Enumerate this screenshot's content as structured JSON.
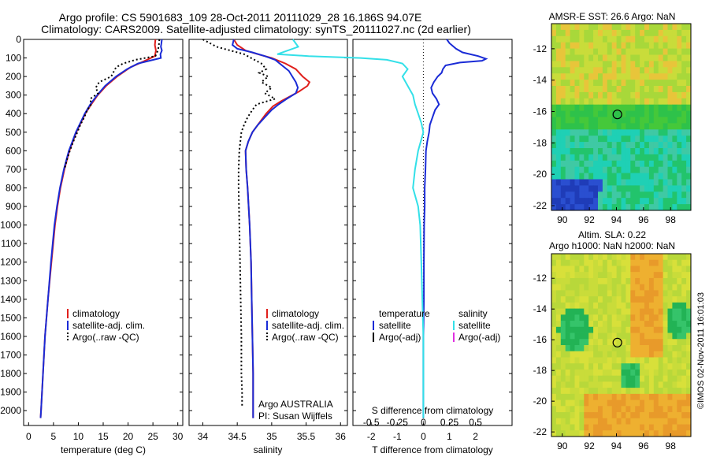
{
  "header": {
    "line1": "Argo profile: CS 5901683_109 28-Oct-2011 20111029_28 16.186S 94.07E",
    "line2": "Climatology: CARS2009. Satellite-adjusted climatology: synTS_20111027.nc (2d earlier)"
  },
  "watermark": "©IMOS 02-Nov-2011 16:01:03",
  "colors": {
    "climatology": "#e0201c",
    "satellite": "#1a2bd6",
    "argo": "#000000",
    "s_satellite": "#33e0e8",
    "s_argo": "#e030e0"
  },
  "chart_data": [
    {
      "type": "line",
      "panel": "temperature",
      "xlabel": "temperature (deg C)",
      "ylabel": "",
      "xlim": [
        -1,
        31
      ],
      "ylim": [
        2080,
        0
      ],
      "x_ticks": [
        "0",
        "5",
        "10",
        "15",
        "20",
        "25",
        "30"
      ],
      "y_ticks": [
        "0",
        "100",
        "200",
        "300",
        "400",
        "500",
        "600",
        "700",
        "800",
        "900",
        "1000",
        "1100",
        "1200",
        "1300",
        "1400",
        "1500",
        "1600",
        "1700",
        "1800",
        "1900",
        "2000"
      ],
      "legend": [
        "climatology",
        "satellite-adj. clim.",
        "Argo(..raw -QC)"
      ],
      "series": [
        {
          "name": "climatology",
          "depth": [
            0,
            30,
            60,
            90,
            120,
            150,
            200,
            250,
            300,
            350,
            400,
            450,
            500,
            550,
            600,
            700,
            800,
            900,
            1000,
            1200,
            1400,
            1600,
            1800,
            2000,
            2040
          ],
          "values": [
            25.5,
            25.4,
            25.6,
            25.4,
            23.0,
            20.5,
            17.8,
            15.6,
            13.9,
            12.6,
            11.4,
            10.5,
            9.6,
            8.9,
            8.2,
            7.2,
            6.4,
            5.8,
            5.3,
            4.6,
            3.9,
            3.3,
            2.9,
            2.5,
            2.4
          ]
        },
        {
          "name": "satellite-adj. clim.",
          "depth": [
            0,
            20,
            40,
            60,
            80,
            100,
            130,
            160,
            200,
            250,
            300,
            350,
            400,
            450,
            500,
            550,
            600,
            700,
            800,
            900,
            1000,
            1200,
            1400,
            1600,
            1800,
            2000,
            2040
          ],
          "values": [
            26.8,
            26.7,
            26.6,
            26.8,
            26.5,
            26.6,
            22.0,
            19.8,
            17.6,
            15.4,
            13.8,
            12.4,
            11.3,
            10.4,
            9.5,
            8.8,
            8.1,
            7.1,
            6.3,
            5.7,
            5.2,
            4.5,
            3.9,
            3.3,
            2.9,
            2.5,
            2.4
          ]
        },
        {
          "name": "Argo(..raw -QC)",
          "depth": [
            0,
            30,
            60,
            90,
            110,
            130,
            150,
            170,
            200,
            230,
            260,
            290,
            320,
            350,
            380,
            420,
            460,
            500,
            550,
            600,
            650,
            700
          ],
          "values": [
            26.3,
            26.2,
            26.0,
            25.5,
            21.5,
            19.0,
            17.6,
            17.2,
            16.6,
            14.2,
            13.5,
            14.0,
            12.4,
            12.6,
            11.8,
            11.2,
            10.4,
            9.8,
            9.0,
            8.3,
            7.7,
            7.2
          ]
        }
      ]
    },
    {
      "type": "line",
      "panel": "salinity",
      "xlabel": "salinity",
      "xlim": [
        33.8,
        36.1
      ],
      "ylim": [
        2080,
        0
      ],
      "x_ticks": [
        "34",
        "34.5",
        "35",
        "35.5",
        "36"
      ],
      "legend": [
        "climatology",
        "satellite-adj. clim.",
        "Argo(..raw -QC)"
      ],
      "annotation": [
        "Argo AUSTRALIA",
        "PI: Susan Wijffels"
      ],
      "series": [
        {
          "name": "climatology",
          "depth": [
            0,
            30,
            60,
            80,
            100,
            130,
            160,
            200,
            230,
            250,
            280,
            300,
            330,
            360,
            400,
            450,
            500,
            550,
            600,
            700,
            800,
            1000,
            1200,
            1400,
            1600,
            1800,
            2000,
            2040
          ],
          "values": [
            34.45,
            34.5,
            34.62,
            34.8,
            35.0,
            35.2,
            35.35,
            35.45,
            35.55,
            35.52,
            35.4,
            35.3,
            35.15,
            35.02,
            34.92,
            34.82,
            34.72,
            34.66,
            34.62,
            34.63,
            34.65,
            34.68,
            34.7,
            34.71,
            34.72,
            34.73,
            34.73,
            34.73
          ]
        },
        {
          "name": "satellite-adj. clim.",
          "depth": [
            0,
            30,
            50,
            70,
            90,
            110,
            140,
            170,
            200,
            230,
            260,
            290,
            320,
            350,
            380,
            420,
            460,
            500,
            550,
            600,
            700,
            800,
            1000,
            1200,
            1400,
            1600,
            1800,
            2000,
            2040
          ],
          "values": [
            34.45,
            34.43,
            34.5,
            34.72,
            34.9,
            35.05,
            35.15,
            35.25,
            35.3,
            35.35,
            35.38,
            35.35,
            35.22,
            35.1,
            35.0,
            34.9,
            34.8,
            34.72,
            34.66,
            34.62,
            34.63,
            34.65,
            34.68,
            34.7,
            34.71,
            34.72,
            34.73,
            34.73,
            34.73
          ]
        },
        {
          "name": "Argo(..raw -QC)",
          "depth": [
            0,
            40,
            80,
            100,
            130,
            160,
            180,
            200,
            230,
            260,
            290,
            320,
            350,
            380,
            420,
            460,
            500,
            600,
            700,
            800,
            1000,
            1200,
            1400,
            1600,
            1800,
            1900,
            1980
          ],
          "values": [
            34.0,
            34.2,
            34.6,
            34.7,
            34.85,
            34.92,
            34.82,
            34.95,
            34.85,
            35.0,
            34.9,
            35.05,
            34.78,
            34.72,
            34.65,
            34.6,
            34.56,
            34.53,
            34.52,
            34.52,
            34.53,
            34.54,
            34.55,
            34.56,
            34.56,
            34.57,
            34.57
          ]
        }
      ]
    },
    {
      "type": "line",
      "panel": "difference",
      "xlabel": "T difference from climatology",
      "xlabel2": "S difference from climatology",
      "xlim": [
        -2.7,
        3.4
      ],
      "ylim": [
        2080,
        0
      ],
      "x_ticks_T": [
        "-2",
        "-1",
        "0",
        "1",
        "2"
      ],
      "x_ticks_S": [
        "-0.5",
        "-0.25",
        "0",
        "0.25",
        "0.5"
      ],
      "legend_temperature": [
        "temperature",
        "satellite",
        "Argo(-adj)"
      ],
      "legend_salinity": [
        "salinity",
        "satellite",
        "Argo(-adj)"
      ],
      "series": [
        {
          "name": "temperature satellite",
          "depth": [
            0,
            20,
            50,
            70,
            90,
            105,
            115,
            125,
            140,
            160,
            180,
            200,
            230,
            260,
            290,
            320,
            350,
            380,
            420,
            460,
            500,
            550,
            600,
            700,
            800,
            900,
            1000,
            1200,
            1400,
            1600,
            1800,
            2000,
            2040
          ],
          "values": [
            0.9,
            1.0,
            1.25,
            1.5,
            2.1,
            2.4,
            2.25,
            1.4,
            0.85,
            0.75,
            0.7,
            0.55,
            0.4,
            0.3,
            0.35,
            0.5,
            0.6,
            0.45,
            0.35,
            0.25,
            0.22,
            0.15,
            0.1,
            0.08,
            0.05,
            0.05,
            0.03,
            0.02,
            0.02,
            0.0,
            0.0,
            0.0,
            0.0
          ]
        },
        {
          "name": "salinity satellite",
          "depth": [
            0,
            40,
            80,
            90,
            100,
            110,
            130,
            160,
            200,
            250,
            300,
            350,
            400,
            450,
            500,
            600,
            700,
            800,
            900,
            1000,
            1200,
            1400,
            1600,
            1800,
            2000,
            2040
          ],
          "values": [
            -1.25,
            -1.2,
            -1.4,
            -1.1,
            -0.6,
            -0.35,
            -0.2,
            -0.15,
            -0.2,
            -0.15,
            -0.1,
            -0.08,
            -0.05,
            -0.02,
            0.0,
            -0.05,
            -0.08,
            -0.1,
            -0.05,
            -0.03,
            -0.02,
            -0.01,
            0.0,
            0.0,
            0.0,
            0.0
          ]
        }
      ]
    },
    {
      "type": "heatmap",
      "panel": "sst-map",
      "title": "AMSR-E SST: 26.6  Argo: NaN",
      "xlim": [
        89.2,
        99.5
      ],
      "ylim": [
        -22.3,
        -10.4
      ],
      "x_ticks": [
        "90",
        "92",
        "94",
        "96",
        "98"
      ],
      "y_ticks": [
        "-12",
        "-14",
        "-16",
        "-18",
        "-20",
        "-22"
      ],
      "argo_position": [
        94.07,
        -16.186
      ]
    },
    {
      "type": "heatmap",
      "panel": "sla-map",
      "title": "Altim. SLA: 0.22",
      "title2": "Argo h1000: NaN  h2000: NaN",
      "xlim": [
        89.2,
        99.5
      ],
      "ylim": [
        -22.3,
        -10.4
      ],
      "x_ticks": [
        "90",
        "92",
        "94",
        "96",
        "98"
      ],
      "y_ticks": [
        "-12",
        "-14",
        "-16",
        "-18",
        "-20",
        "-22"
      ],
      "argo_position": [
        94.07,
        -16.186
      ]
    }
  ]
}
